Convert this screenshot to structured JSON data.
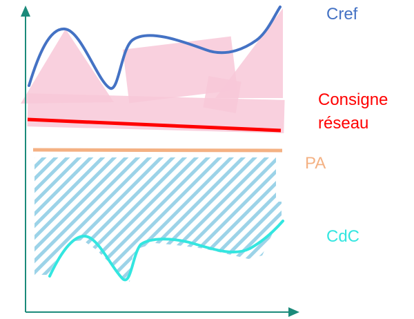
{
  "labels": {
    "cref": "Cref",
    "consigne_line1": "Consigne",
    "consigne_line2": "réseau",
    "pa": "PA",
    "cdc": "CdC"
  },
  "colors": {
    "cref": "#4472C4",
    "consigne": "#FF0000",
    "pa": "#F4B183",
    "cdc": "#33E6E0",
    "axis": "#1B8A7A",
    "pink_fill": "#F8C8D8",
    "hatch": "#9CD3E8"
  }
}
